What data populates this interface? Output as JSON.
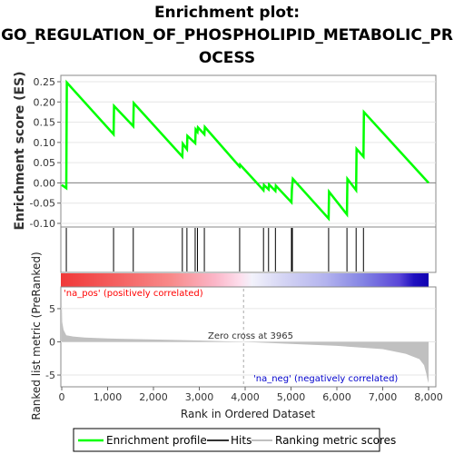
{
  "title_lines": [
    "Enrichment plot:",
    "GO_REGULATION_OF_PHOSPHOLIPID_METABOLIC_PR",
    "OCESS"
  ],
  "colors": {
    "profile": "#00ff00",
    "hits": "#000000",
    "metric_fill": "#c0c0c0",
    "pos_label": "#ff0000",
    "neg_label": "#0000cc",
    "zero_line": "#808080"
  },
  "chart_data": {
    "type": "line",
    "es_panel": {
      "ylabel": "Enrichment score (ES)",
      "ylim": [
        -0.1,
        0.25
      ],
      "yticks": [
        "0.25",
        "0.20",
        "0.15",
        "0.10",
        "0.05",
        "0.00",
        "-0.05",
        "-0.10"
      ],
      "ytick_values": [
        0.25,
        0.2,
        0.15,
        0.1,
        0.05,
        0.0,
        -0.05,
        -0.1
      ],
      "xlim": [
        0,
        8000
      ],
      "profile_x": [
        0,
        100,
        110,
        1130,
        1140,
        1560,
        1570,
        2630,
        2640,
        2730,
        2740,
        2910,
        2920,
        2960,
        2970,
        3110,
        3120,
        3880,
        3890,
        4400,
        4410,
        4510,
        4520,
        4660,
        4670,
        5010,
        5020,
        5030,
        5040,
        5820,
        5830,
        6220,
        6230,
        6420,
        6430,
        6580,
        6590,
        8000
      ],
      "profile_y": [
        -0.005,
        -0.013,
        0.248,
        0.12,
        0.19,
        0.14,
        0.197,
        0.065,
        0.097,
        0.083,
        0.116,
        0.098,
        0.132,
        0.126,
        0.137,
        0.12,
        0.138,
        0.04,
        0.045,
        -0.018,
        -0.005,
        -0.016,
        -0.004,
        -0.02,
        -0.007,
        -0.048,
        -0.015,
        -0.002,
        0.01,
        -0.088,
        -0.022,
        -0.078,
        0.01,
        -0.018,
        0.084,
        0.065,
        0.175,
        0.0
      ]
    },
    "hits_panel": {
      "hit_ranks": [
        100,
        1130,
        1560,
        2630,
        2730,
        2910,
        2960,
        3110,
        3880,
        4400,
        4510,
        4660,
        5010,
        5020,
        5030,
        5820,
        6220,
        6420,
        6580
      ]
    },
    "metric_panel": {
      "ylabel": "Ranked list metric (PreRanked)",
      "xlabel": "Rank in Ordered Dataset",
      "ylim": [
        -6.5,
        8
      ],
      "yticks": [
        "5",
        "0",
        "-5"
      ],
      "ytick_values": [
        5,
        0,
        -5
      ],
      "xticks": [
        "0",
        "1,000",
        "2,000",
        "3,000",
        "4,000",
        "5,000",
        "6,000",
        "7,000",
        "8,000"
      ],
      "xtick_values": [
        0,
        1000,
        2000,
        3000,
        4000,
        5000,
        6000,
        7000,
        8000
      ],
      "curve_x": [
        0,
        10,
        40,
        100,
        250,
        500,
        1000,
        2000,
        3000,
        3965,
        5000,
        6000,
        7000,
        7500,
        7800,
        7900,
        7950,
        7980,
        8000
      ],
      "curve_y": [
        6.0,
        3.0,
        1.8,
        1.0,
        0.8,
        0.65,
        0.5,
        0.35,
        0.2,
        0.0,
        -0.3,
        -0.6,
        -1.1,
        -1.8,
        -2.6,
        -3.5,
        -4.8,
        -5.8,
        -6.2
      ],
      "zero_cross_label": "Zero cross at 3965",
      "zero_cross_rank": 3965,
      "pos_label": "'na_pos' (positively correlated)",
      "neg_label": "'na_neg' (negatively correlated)"
    }
  },
  "legend": {
    "items": [
      {
        "label": "Enrichment profile"
      },
      {
        "label": "Hits"
      },
      {
        "label": "Ranking metric scores"
      }
    ]
  }
}
